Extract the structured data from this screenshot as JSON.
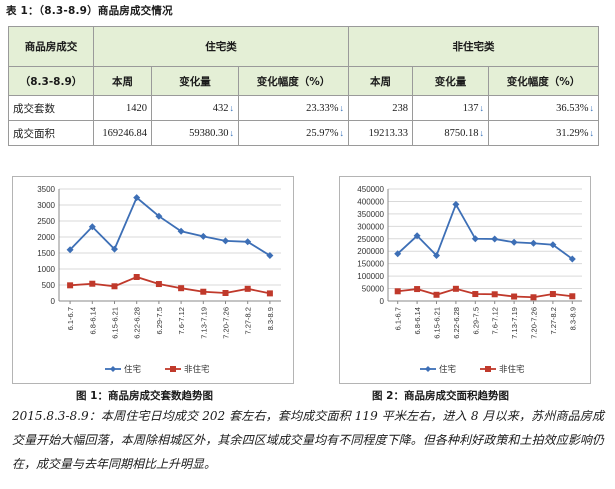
{
  "title": "表 1：（8.3-8.9）商品房成交情况",
  "table": {
    "corner": "商品房成交",
    "group_residential": "住宅类",
    "group_nonresidential": "非住宅类",
    "period": "（8.3-8.9）",
    "col_week": "本周",
    "col_change": "变化量",
    "col_pct": "变化幅度（%）",
    "rows": [
      {
        "label": "成交套数",
        "res_week": "1420",
        "res_change": "432",
        "res_pct": "23.33%",
        "non_week": "238",
        "non_change": "137",
        "non_pct": "36.53%"
      },
      {
        "label": "成交面积",
        "res_week": "169246.84",
        "res_change": "59380.30",
        "res_pct": "25.97%",
        "non_week": "19213.33",
        "non_change": "8750.18",
        "non_pct": "31.29%"
      }
    ],
    "arrow_glyph": "↓",
    "arrow_color": "#2f6db8"
  },
  "chart_data": [
    {
      "type": "line",
      "title": "图 1：商品房成交套数趋势图",
      "categories": [
        "6.1-6.7",
        "6.8-6.14",
        "6.15-6.21",
        "6.22-6.28",
        "6.29-7.5",
        "7.6-7.12",
        "7.13-7.19",
        "7.20-7.26",
        "7.27-8.2",
        "8.3-8.9"
      ],
      "series": [
        {
          "name": "住宅",
          "color": "#3d6fb6",
          "marker": "diamond",
          "values": [
            1600,
            2320,
            1620,
            3230,
            2650,
            2180,
            2020,
            1880,
            1850,
            1420
          ]
        },
        {
          "name": "非住宅",
          "color": "#c0392b",
          "marker": "square",
          "values": [
            490,
            540,
            460,
            750,
            530,
            400,
            290,
            250,
            380,
            238
          ]
        }
      ],
      "yticks": [
        "0",
        "500",
        "1000",
        "1500",
        "2000",
        "2500",
        "3000",
        "3500"
      ],
      "ylim": [
        0,
        3500
      ],
      "grid": true,
      "legend": "bottom"
    },
    {
      "type": "line",
      "title": "图 2：商品房成交面积趋势图",
      "categories": [
        "6.1-6.7",
        "6.8-6.14",
        "6.15-6.21",
        "6.22-6.28",
        "6.29-7.5",
        "7.6-7.12",
        "7.13-7.19",
        "7.20-7.26",
        "7.27-8.2",
        "8.3-8.9"
      ],
      "series": [
        {
          "name": "住宅",
          "color": "#3d6fb6",
          "marker": "diamond",
          "values": [
            190000,
            262000,
            183000,
            388000,
            250000,
            249000,
            236000,
            232000,
            226000,
            169000
          ]
        },
        {
          "name": "非住宅",
          "color": "#c0392b",
          "marker": "square",
          "values": [
            39000,
            48000,
            25000,
            49000,
            28000,
            27000,
            18000,
            15000,
            28000,
            19000
          ]
        }
      ],
      "yticks": [
        "0",
        "50000",
        "100000",
        "150000",
        "200000",
        "250000",
        "300000",
        "350000",
        "400000",
        "450000"
      ],
      "ylim": [
        0,
        450000
      ],
      "grid": true,
      "legend": "bottom"
    }
  ],
  "paragraph": "2015.8.3-8.9：本周住宅日均成交 202 套左右，套均成交面积 119 平米左右，进入 8 月以来，苏州商品房成交量开始大幅回落，本周除相城区外，其余四区域成交量均有不同程度下降。但各种利好政策和土拍效应影响仍在，成交量与去年同期相比上升明显。"
}
